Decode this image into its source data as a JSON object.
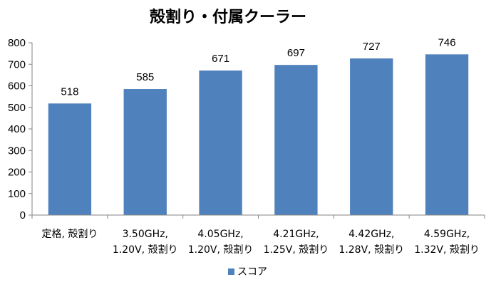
{
  "chart_data": {
    "type": "bar",
    "title": "殻割り・付属クーラー",
    "categories": [
      [
        "定格, 殻割り"
      ],
      [
        "3.50GHz,",
        "1.20V, 殻割り"
      ],
      [
        "4.05GHz,",
        "1.20V, 殻割り"
      ],
      [
        "4.21GHz,",
        "1.25V, 殻割り"
      ],
      [
        "4.42GHz,",
        "1.28V, 殻割り"
      ],
      [
        "4.59GHz,",
        "1.32V, 殻割り"
      ]
    ],
    "series": [
      {
        "name": "スコア",
        "values": [
          518,
          585,
          671,
          697,
          727,
          746
        ]
      }
    ],
    "ylim": [
      0,
      800
    ],
    "yticks": [
      0,
      100,
      200,
      300,
      400,
      500,
      600,
      700,
      800
    ],
    "grid": false,
    "legend": "bottom",
    "colors": {
      "bar": "#4f81bd",
      "axis": "#868686"
    }
  }
}
